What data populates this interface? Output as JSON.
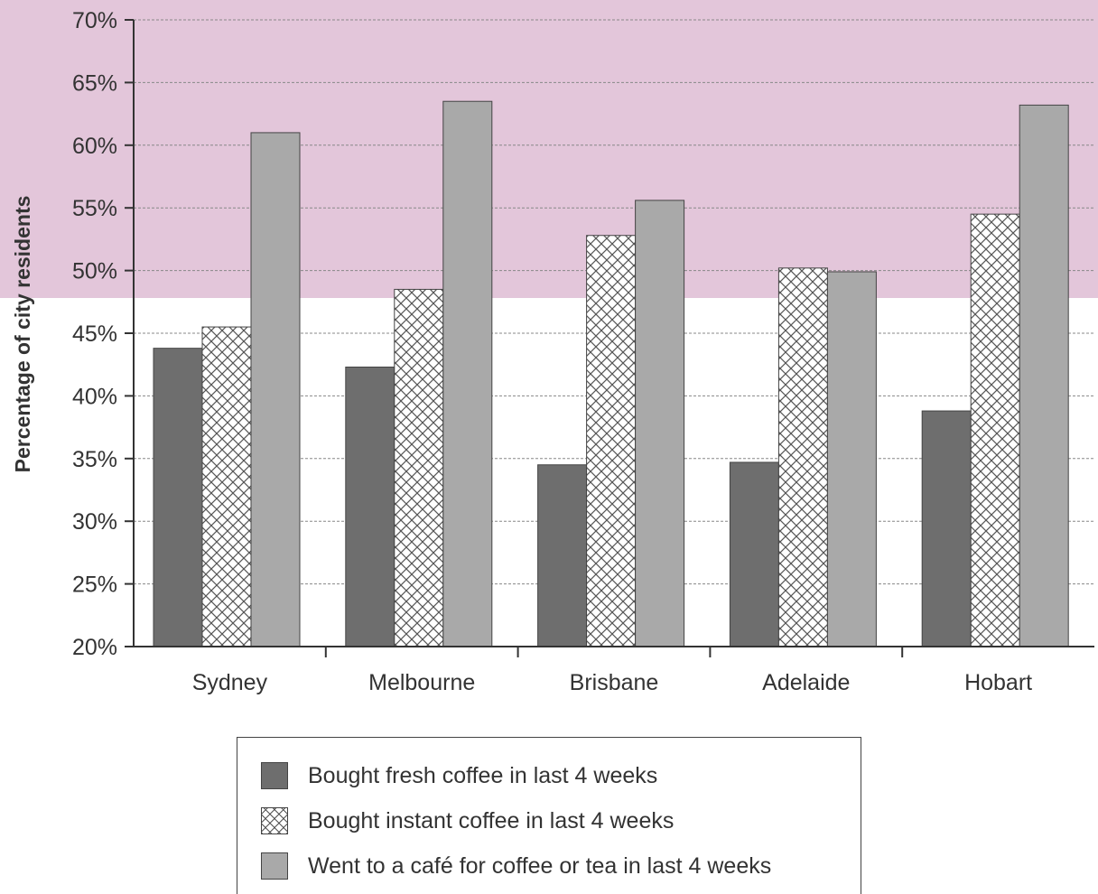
{
  "chart_data": {
    "type": "bar",
    "ylabel": "Percentage of city residents",
    "xlabel": "",
    "ylim": [
      20,
      70
    ],
    "y_ticks": [
      "20%",
      "25%",
      "30%",
      "35%",
      "40%",
      "45%",
      "50%",
      "55%",
      "60%",
      "65%",
      "70%"
    ],
    "grid": true,
    "categories": [
      "Sydney",
      "Melbourne",
      "Brisbane",
      "Adelaide",
      "Hobart"
    ],
    "series": [
      {
        "name": "Bought fresh coffee in last 4 weeks",
        "values": [
          43.8,
          42.3,
          34.5,
          34.7,
          38.8
        ],
        "color": "#6e6e6e",
        "pattern": "solid"
      },
      {
        "name": "Bought instant coffee in last 4 weeks",
        "values": [
          45.5,
          48.5,
          52.8,
          50.2,
          54.5
        ],
        "color": "#ffffff",
        "pattern": "crosshatch"
      },
      {
        "name": "Went to a café for coffee or tea in last 4 weeks",
        "values": [
          61.0,
          63.5,
          55.6,
          49.9,
          63.2
        ],
        "color": "#a9a9a9",
        "pattern": "solid"
      }
    ],
    "legend_position": "bottom"
  },
  "colors": {
    "background_band": "#e3c6da",
    "axis": "#333333",
    "grid": "#888888"
  }
}
